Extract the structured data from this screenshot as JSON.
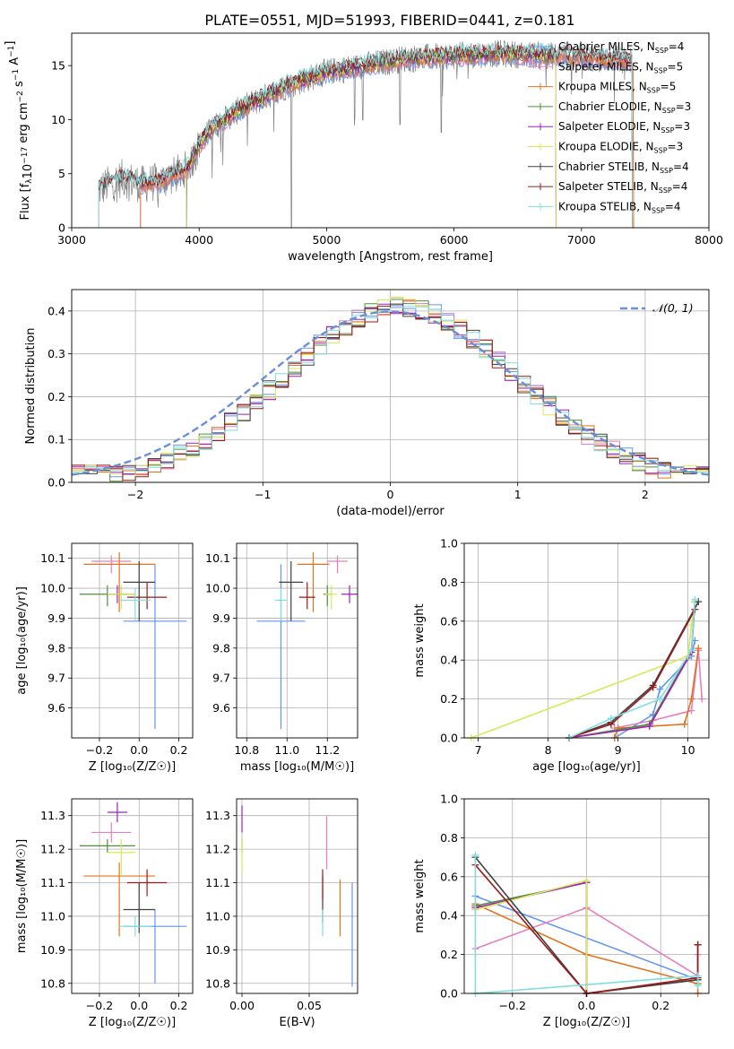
{
  "figure": {
    "title": "PLATE=0551, MJD=51993, FIBERID=0441, z=0.181"
  },
  "colors": {
    "Chabrier MILES": "#6495ed",
    "Salpeter MILES": "#e67fbf",
    "Kroupa MILES": "#e3731c",
    "Chabrier ELODIE": "#4f8f3b",
    "Salpeter ELODIE": "#a020c0",
    "Kroupa ELODIE": "#d8e85a",
    "Chabrier STELIB": "#404040",
    "Salpeter STELIB": "#a01818",
    "Kroupa STELIB": "#7fdede",
    "data": "#808080",
    "normal": "#6a8fd8",
    "grid": "#b0b0b0"
  },
  "chart_data": [
    {
      "id": "spectrum",
      "type": "line",
      "xlabel": "wavelength [Angstrom, rest frame]",
      "ylabel": "Flux [f_λ10^{-17} erg cm^{-2} s^{-1} A^{-1}]",
      "xlim": [
        3000,
        8000
      ],
      "ylim": [
        0,
        18
      ],
      "xticks": [
        3000,
        4000,
        5000,
        6000,
        7000,
        8000
      ],
      "yticks": [
        0,
        5,
        10,
        15
      ],
      "grid": false,
      "legend_position": "right",
      "legend": [
        {
          "name": "Chabrier MILES",
          "nssp": "4"
        },
        {
          "name": "Salpeter MILES",
          "nssp": "5"
        },
        {
          "name": "Kroupa MILES",
          "nssp": "5"
        },
        {
          "name": "Chabrier ELODIE",
          "nssp": "3"
        },
        {
          "name": "Salpeter ELODIE",
          "nssp": "3"
        },
        {
          "name": "Kroupa ELODIE",
          "nssp": "3"
        },
        {
          "name": "Chabrier STELIB",
          "nssp": "4"
        },
        {
          "name": "Salpeter STELIB",
          "nssp": "4"
        },
        {
          "name": "Kroupa STELIB",
          "nssp": "4"
        }
      ],
      "continuum": {
        "x": [
          3200,
          3400,
          3550,
          3700,
          3900,
          4000,
          4100,
          4300,
          4500,
          4700,
          5000,
          5300,
          5600,
          6000,
          6300,
          6600,
          6800,
          7000,
          7200,
          7400
        ],
        "y": [
          3.5,
          4.6,
          4.0,
          4.3,
          5.4,
          7.6,
          9.2,
          10.8,
          12.0,
          13.2,
          14.4,
          15.0,
          15.6,
          15.9,
          16.1,
          16.0,
          15.9,
          15.8,
          15.6,
          15.5
        ]
      },
      "model_ranges": [
        {
          "name": "Chabrier MILES",
          "x": [
            3540,
            7410
          ]
        },
        {
          "name": "Salpeter MILES",
          "x": [
            3540,
            7410
          ]
        },
        {
          "name": "Kroupa MILES",
          "x": [
            3540,
            7410
          ]
        },
        {
          "name": "Chabrier ELODIE",
          "x": [
            3900,
            6800
          ]
        },
        {
          "name": "Salpeter ELODIE",
          "x": [
            3900,
            6800
          ]
        },
        {
          "name": "Kroupa ELODIE",
          "x": [
            3900,
            6800
          ]
        },
        {
          "name": "Chabrier STELIB",
          "x": [
            3210,
            7400
          ]
        },
        {
          "name": "Salpeter STELIB",
          "x": [
            3210,
            7400
          ]
        },
        {
          "name": "Kroupa STELIB",
          "x": [
            3210,
            7400
          ]
        }
      ]
    },
    {
      "id": "residuals",
      "type": "histogram",
      "xlabel": "(data-model)/error",
      "ylabel": "Normed distribution",
      "xlim": [
        -2.5,
        2.5
      ],
      "ylim": [
        0,
        0.45
      ],
      "xticks": [
        -2,
        -1,
        0,
        1,
        2
      ],
      "yticks": [
        0.0,
        0.1,
        0.2,
        0.3,
        0.4
      ],
      "grid": true,
      "legend_position": "top-right",
      "normal_label": "𝒩(0, 1)",
      "bin_width": 0.1,
      "bin_start": -2.5
    },
    {
      "id": "age_vs_Z",
      "type": "errorbar",
      "xlabel": "Z [log₁₀(Z/Z☉)]",
      "ylabel": "age  [log₁₀(age/yr)]",
      "xlim": [
        -0.34,
        0.27
      ],
      "ylim": [
        9.5,
        10.15
      ],
      "xticks": [
        -0.2,
        0.0,
        0.2
      ],
      "yticks": [
        9.6,
        9.7,
        9.8,
        9.9,
        10.0,
        10.1
      ],
      "grid": true,
      "points": [
        {
          "name": "Chabrier MILES",
          "x": 0.08,
          "xerr": 0.16,
          "y": 9.89,
          "yerr_lo": 0.36,
          "yerr_hi": 0.19
        },
        {
          "name": "Salpeter MILES",
          "x": -0.14,
          "xerr": 0.1,
          "y": 10.09,
          "yerr_lo": 0.04,
          "yerr_hi": 0.02
        },
        {
          "name": "Kroupa MILES",
          "x": -0.1,
          "xerr": 0.18,
          "y": 10.08,
          "yerr_lo": 0.16,
          "yerr_hi": 0.04
        },
        {
          "name": "Chabrier ELODIE",
          "x": -0.16,
          "xerr": 0.14,
          "y": 9.98,
          "yerr_lo": 0.04,
          "yerr_hi": 0.03
        },
        {
          "name": "Salpeter ELODIE",
          "x": -0.11,
          "xerr": 0.05,
          "y": 9.98,
          "yerr_lo": 0.03,
          "yerr_hi": 0.03
        },
        {
          "name": "Kroupa ELODIE",
          "x": -0.09,
          "xerr": 0.07,
          "y": 9.98,
          "yerr_lo": 0.05,
          "yerr_hi": 0.03
        },
        {
          "name": "Chabrier STELIB",
          "x": 0.0,
          "xerr": 0.08,
          "y": 10.02,
          "yerr_lo": 0.13,
          "yerr_hi": 0.07
        },
        {
          "name": "Salpeter STELIB",
          "x": 0.04,
          "xerr": 0.1,
          "y": 9.97,
          "yerr_lo": 0.04,
          "yerr_hi": 0.05
        },
        {
          "name": "Kroupa STELIB",
          "x": -0.02,
          "xerr": 0.08,
          "y": 9.96,
          "yerr_lo": 0.07,
          "yerr_hi": 0.04
        }
      ]
    },
    {
      "id": "age_vs_mass",
      "type": "errorbar",
      "xlabel": "mass [log₁₀(M/M☉)]",
      "ylabel": "",
      "xlim": [
        10.75,
        11.35
      ],
      "ylim": [
        9.5,
        10.15
      ],
      "xticks": [
        10.8,
        11.0,
        11.2
      ],
      "yticks": [
        9.6,
        9.7,
        9.8,
        9.9,
        10.0,
        10.1
      ],
      "grid": true,
      "points": [
        {
          "name": "Chabrier MILES",
          "x": 10.97,
          "xerr": 0.12,
          "y": 9.89,
          "yerr_lo": 0.36,
          "yerr_hi": 0.19
        },
        {
          "name": "Salpeter MILES",
          "x": 11.25,
          "xerr": 0.05,
          "y": 10.09,
          "yerr_lo": 0.04,
          "yerr_hi": 0.02
        },
        {
          "name": "Kroupa MILES",
          "x": 11.13,
          "xerr": 0.08,
          "y": 10.08,
          "yerr_lo": 0.16,
          "yerr_hi": 0.04
        },
        {
          "name": "Chabrier ELODIE",
          "x": 11.2,
          "xerr": 0.02,
          "y": 9.98,
          "yerr_lo": 0.04,
          "yerr_hi": 0.03
        },
        {
          "name": "Salpeter ELODIE",
          "x": 11.31,
          "xerr": 0.04,
          "y": 9.98,
          "yerr_lo": 0.03,
          "yerr_hi": 0.03
        },
        {
          "name": "Kroupa ELODIE",
          "x": 11.22,
          "xerr": 0.03,
          "y": 9.98,
          "yerr_lo": 0.05,
          "yerr_hi": 0.03
        },
        {
          "name": "Chabrier STELIB",
          "x": 11.02,
          "xerr": 0.06,
          "y": 10.02,
          "yerr_lo": 0.13,
          "yerr_hi": 0.07
        },
        {
          "name": "Salpeter STELIB",
          "x": 11.1,
          "xerr": 0.04,
          "y": 9.97,
          "yerr_lo": 0.04,
          "yerr_hi": 0.05
        },
        {
          "name": "Kroupa STELIB",
          "x": 10.97,
          "xerr": 0.03,
          "y": 9.96,
          "yerr_lo": 0.07,
          "yerr_hi": 0.04
        }
      ]
    },
    {
      "id": "weight_vs_age",
      "type": "line",
      "xlabel": "age  [log₁₀(age/yr)]",
      "ylabel": "mass weight",
      "xlim": [
        6.8,
        10.3
      ],
      "ylim": [
        0,
        1.0
      ],
      "xticks": [
        7,
        8,
        9,
        10
      ],
      "yticks": [
        0.0,
        0.2,
        0.4,
        0.6,
        0.8,
        1.0
      ],
      "grid": true,
      "series": [
        {
          "name": "Chabrier MILES",
          "x": [
            8.95,
            9.5,
            9.6,
            10.05,
            10.1
          ],
          "y": [
            0.0,
            0.12,
            0.25,
            0.42,
            0.5
          ]
        },
        {
          "name": "Salpeter MILES",
          "x": [
            8.95,
            9.5,
            10.05,
            10.15,
            10.2
          ],
          "y": [
            0.05,
            0.09,
            0.14,
            0.45,
            0.2
          ]
        },
        {
          "name": "Kroupa MILES",
          "x": [
            8.95,
            9.0,
            9.95,
            10.05,
            10.15
          ],
          "y": [
            0.0,
            0.05,
            0.07,
            0.2,
            0.46
          ]
        },
        {
          "name": "Chabrier ELODIE",
          "x": [
            8.3,
            9.45,
            10.05,
            10.1
          ],
          "y": [
            0.0,
            0.07,
            0.45,
            0.7
          ]
        },
        {
          "name": "Salpeter ELODIE",
          "x": [
            8.3,
            9.45,
            10.05,
            10.1
          ],
          "y": [
            0.0,
            0.06,
            0.44,
            0.7
          ]
        },
        {
          "name": "Kroupa ELODIE",
          "x": [
            6.9,
            10.0,
            10.05,
            10.1
          ],
          "y": [
            0.0,
            0.42,
            0.58,
            0.7
          ]
        },
        {
          "name": "Chabrier STELIB",
          "x": [
            8.3,
            8.9,
            9.5,
            10.15
          ],
          "y": [
            0.0,
            0.08,
            0.27,
            0.7
          ]
        },
        {
          "name": "Salpeter STELIB",
          "x": [
            8.3,
            8.9,
            9.5,
            10.1
          ],
          "y": [
            0.0,
            0.07,
            0.26,
            0.66
          ]
        },
        {
          "name": "Kroupa STELIB",
          "x": [
            8.3,
            8.9,
            9.6,
            10.05,
            10.1
          ],
          "y": [
            0.0,
            0.1,
            0.2,
            0.45,
            0.71
          ]
        }
      ]
    },
    {
      "id": "mass_vs_Z",
      "type": "errorbar",
      "xlabel": "Z [log₁₀(Z/Z☉)]",
      "ylabel": "mass [log₁₀(M/M☉)]",
      "xlim": [
        -0.34,
        0.27
      ],
      "ylim": [
        10.77,
        11.35
      ],
      "xticks": [
        -0.2,
        0.0,
        0.2
      ],
      "yticks": [
        10.8,
        10.9,
        11.0,
        11.1,
        11.2,
        11.3
      ],
      "grid": true,
      "points": [
        {
          "name": "Chabrier MILES",
          "x": 0.08,
          "xerr": 0.16,
          "y": 10.97,
          "yerr_lo": 0.17,
          "yerr_hi": 0.05
        },
        {
          "name": "Salpeter MILES",
          "x": -0.14,
          "xerr": 0.1,
          "y": 11.25,
          "yerr_lo": 0.03,
          "yerr_hi": 0.03
        },
        {
          "name": "Kroupa MILES",
          "x": -0.1,
          "xerr": 0.18,
          "y": 11.12,
          "yerr_lo": 0.18,
          "yerr_hi": 0.04
        },
        {
          "name": "Chabrier ELODIE",
          "x": -0.16,
          "xerr": 0.14,
          "y": 11.21,
          "yerr_lo": 0.02,
          "yerr_hi": 0.02
        },
        {
          "name": "Salpeter ELODIE",
          "x": -0.11,
          "xerr": 0.05,
          "y": 11.31,
          "yerr_lo": 0.03,
          "yerr_hi": 0.03
        },
        {
          "name": "Kroupa ELODIE",
          "x": -0.09,
          "xerr": 0.07,
          "y": 11.19,
          "yerr_lo": 0.07,
          "yerr_hi": 0.04
        },
        {
          "name": "Chabrier STELIB",
          "x": 0.0,
          "xerr": 0.08,
          "y": 11.02,
          "yerr_lo": 0.07,
          "yerr_hi": 0.08
        },
        {
          "name": "Salpeter STELIB",
          "x": 0.04,
          "xerr": 0.1,
          "y": 11.1,
          "yerr_lo": 0.04,
          "yerr_hi": 0.04
        },
        {
          "name": "Kroupa STELIB",
          "x": -0.02,
          "xerr": 0.08,
          "y": 10.97,
          "yerr_lo": 0.03,
          "yerr_hi": 0.03
        }
      ]
    },
    {
      "id": "mass_vs_ebv",
      "type": "errorbar",
      "xlabel": "E(B-V)",
      "ylabel": "",
      "xlim": [
        -0.004,
        0.086
      ],
      "ylim": [
        10.77,
        11.35
      ],
      "xticks": [
        0.0,
        0.05
      ],
      "yticks": [
        10.8,
        10.9,
        11.0,
        11.1,
        11.2,
        11.3
      ],
      "grid": true,
      "points": [
        {
          "name": "Chabrier MILES",
          "x": 0.082,
          "xerr": 0,
          "y": 10.95,
          "yerr_lo": 0.16,
          "yerr_hi": 0.15
        },
        {
          "name": "Salpeter MILES",
          "x": 0.063,
          "xerr": 0,
          "y": 11.22,
          "yerr_lo": 0.08,
          "yerr_hi": 0.08
        },
        {
          "name": "Kroupa MILES",
          "x": 0.073,
          "xerr": 0,
          "y": 11.03,
          "yerr_lo": 0.09,
          "yerr_hi": 0.08
        },
        {
          "name": "Chabrier ELODIE",
          "x": 0.0,
          "xerr": 0,
          "y": 11.21,
          "yerr_lo": 0.02,
          "yerr_hi": 0.02
        },
        {
          "name": "Salpeter ELODIE",
          "x": 0.0,
          "xerr": 0,
          "y": 11.29,
          "yerr_lo": 0.04,
          "yerr_hi": 0.04
        },
        {
          "name": "Kroupa ELODIE",
          "x": 0.0,
          "xerr": 0,
          "y": 11.19,
          "yerr_lo": 0.06,
          "yerr_hi": 0.04
        },
        {
          "name": "Chabrier STELIB",
          "x": 0.06,
          "xerr": 0,
          "y": 11.05,
          "yerr_lo": 0.07,
          "yerr_hi": 0.07
        },
        {
          "name": "Salpeter STELIB",
          "x": 0.06,
          "xerr": 0,
          "y": 11.1,
          "yerr_lo": 0.05,
          "yerr_hi": 0.04
        },
        {
          "name": "Kroupa STELIB",
          "x": 0.06,
          "xerr": 0,
          "y": 10.98,
          "yerr_lo": 0.04,
          "yerr_hi": 0.04
        }
      ]
    },
    {
      "id": "weight_vs_Z",
      "type": "line",
      "xlabel": "Z [log₁₀(Z/Z☉)]",
      "ylabel": "mass weight",
      "xlim": [
        -0.33,
        0.33
      ],
      "ylim": [
        0,
        1.0
      ],
      "xticks": [
        -0.2,
        0.0,
        0.2
      ],
      "yticks": [
        0.0,
        0.2,
        0.4,
        0.6,
        0.8,
        1.0
      ],
      "grid": true,
      "series": [
        {
          "name": "Chabrier MILES",
          "x": [
            -0.3,
            0.3,
            0.3
          ],
          "y": [
            0.5,
            0.07,
            0.05
          ]
        },
        {
          "name": "Salpeter MILES",
          "x": [
            -0.3,
            0.0,
            0.3,
            0.3
          ],
          "y": [
            0.23,
            0.44,
            0.09,
            0.2
          ]
        },
        {
          "name": "Kroupa MILES",
          "x": [
            -0.3,
            0.0,
            0.3,
            0.3
          ],
          "y": [
            0.46,
            0.2,
            0.05,
            0.0
          ]
        },
        {
          "name": "Chabrier ELODIE",
          "x": [
            -0.3,
            0.0,
            0.0,
            0.3
          ],
          "y": [
            0.45,
            0.57,
            0.0,
            0.07
          ]
        },
        {
          "name": "Salpeter ELODIE",
          "x": [
            -0.3,
            0.0,
            0.0,
            0.3
          ],
          "y": [
            0.44,
            0.57,
            0.0,
            0.07
          ]
        },
        {
          "name": "Kroupa ELODIE",
          "x": [
            -0.3,
            0.0,
            0.0,
            0.3
          ],
          "y": [
            0.43,
            0.58,
            0.0,
            0.07
          ]
        },
        {
          "name": "Chabrier STELIB",
          "x": [
            -0.3,
            0.0,
            0.3,
            0.3
          ],
          "y": [
            0.7,
            0.0,
            0.07,
            0.25
          ]
        },
        {
          "name": "Salpeter STELIB",
          "x": [
            -0.3,
            0.0,
            0.3,
            0.3
          ],
          "y": [
            0.66,
            0.0,
            0.08,
            0.25
          ]
        },
        {
          "name": "Kroupa STELIB",
          "x": [
            -0.3,
            -0.3,
            0.3,
            0.3
          ],
          "y": [
            0.71,
            0.0,
            0.09,
            0.04
          ]
        }
      ]
    }
  ]
}
